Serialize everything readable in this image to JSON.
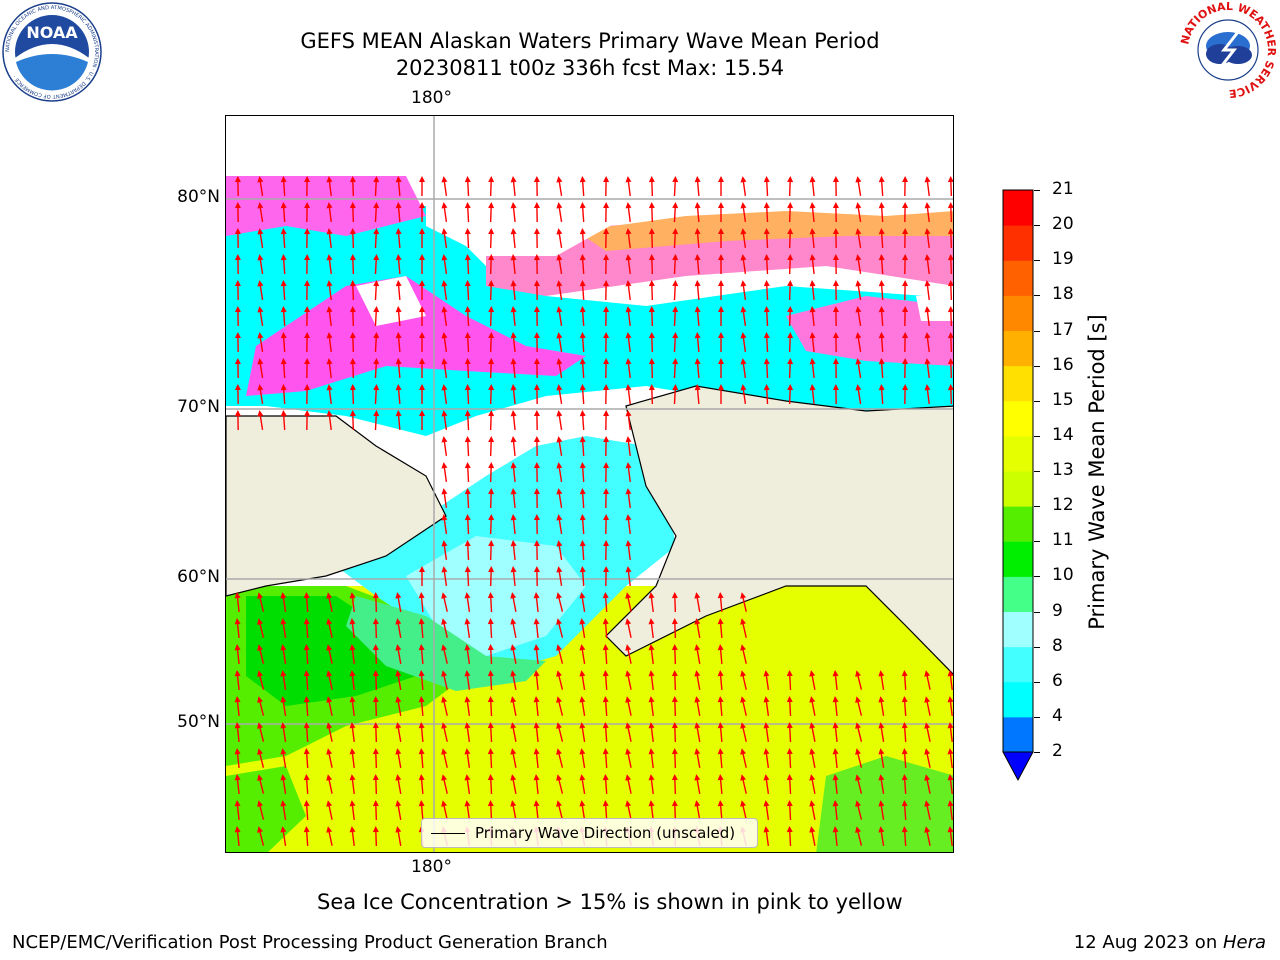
{
  "title": {
    "line1": "GEFS MEAN Alaskan Waters Primary Wave Mean Period",
    "line2": "20230811 t00z 336h fcst   Max: 15.54"
  },
  "map": {
    "lat_labels": [
      "80°N",
      "70°N",
      "60°N",
      "50°N"
    ],
    "lon_label_top": "180°",
    "lon_label_bottom": "180°",
    "legend_label": "Primary Wave Direction (unscaled)",
    "land_color": "#efeddc",
    "arrow_color": "#ff0000"
  },
  "colorbar": {
    "label": "Primary Wave Mean Period [s]",
    "ticks": [
      "2",
      "4",
      "6",
      "8",
      "9",
      "10",
      "11",
      "12",
      "13",
      "14",
      "15",
      "16",
      "17",
      "18",
      "19",
      "20",
      "21"
    ],
    "colors": [
      "#0077ff",
      "#00ffff",
      "#44ffff",
      "#a0ffff",
      "#44ff88",
      "#00ee00",
      "#55ee00",
      "#ccff00",
      "#e6ff00",
      "#ffff00",
      "#ffe000",
      "#ffb000",
      "#ff8800",
      "#ff6000",
      "#ff3000",
      "#ff0000"
    ],
    "extend_color": "#0000ff"
  },
  "notes": {
    "sea_ice": "Sea Ice Concentration > 15% is shown in pink to yellow"
  },
  "footer": {
    "left": "NCEP/EMC/Verification Post Processing Product Generation Branch",
    "date": "12 Aug 2023 on ",
    "machine": "Hera"
  },
  "logos": {
    "noaa_text": "NOAA",
    "noaa_ring": "NATIONAL OCEANIC AND ATMOSPHERIC ADMINISTRATION · U.S. DEPARTMENT OF COMMERCE ·",
    "nws_ring": "NATIONAL WEATHER SERVICE"
  }
}
